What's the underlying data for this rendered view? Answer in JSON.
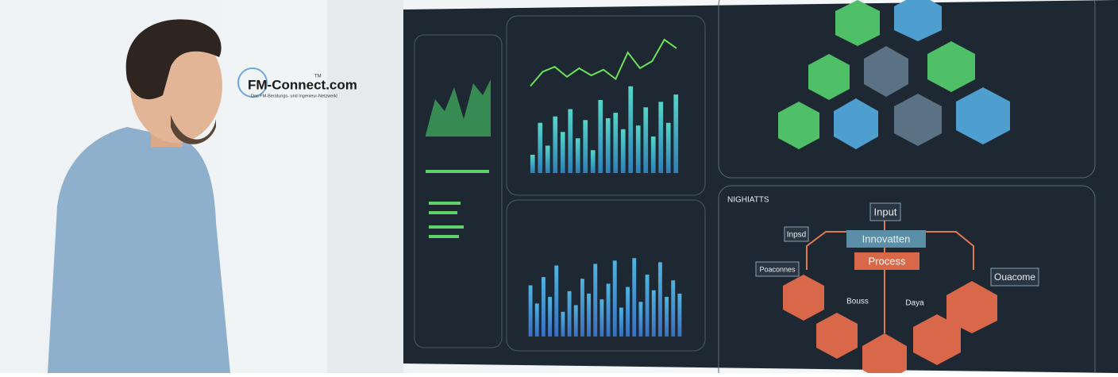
{
  "logo": {
    "name": "FM-Connect.com",
    "tm": "TM",
    "tagline": "Das FM-Beratungs- und Ingenieur-Netzwerk!"
  },
  "screen": {
    "top_bars": [
      20,
      55,
      30,
      62,
      45,
      70,
      38,
      58,
      25,
      80,
      60,
      66,
      48,
      95,
      52,
      72,
      40,
      78,
      55,
      86
    ],
    "top_line": [
      35,
      55,
      62,
      48,
      60,
      50,
      58,
      45,
      82,
      60,
      70,
      100,
      88
    ],
    "bottom_bars": [
      62,
      40,
      72,
      48,
      86,
      30,
      55,
      38,
      70,
      52,
      88,
      45,
      64,
      92,
      35,
      60,
      95,
      42,
      75,
      56,
      90,
      48,
      68,
      52
    ],
    "flow": {
      "title": "NIGHIATTS",
      "input": "Input",
      "innovation": "Innovatten",
      "process": "Process",
      "outcome": "Ouacome",
      "inputs": "Inpsd",
      "processes": "Poaconnes",
      "left_tag": "Bouss",
      "right_tag": "Daya"
    }
  }
}
